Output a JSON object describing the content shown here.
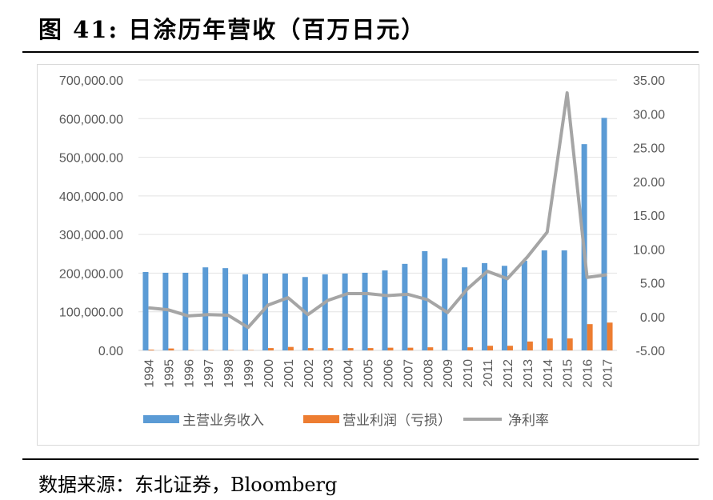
{
  "title": "图 41: 日涂历年营收（百万日元）",
  "source": "数据来源：东北证券，Bloomberg",
  "chart_data": {
    "type": "bar",
    "categories": [
      "1994",
      "1995",
      "1996",
      "1997",
      "1998",
      "1999",
      "2000",
      "2001",
      "2002",
      "2003",
      "2004",
      "2005",
      "2006",
      "2007",
      "2008",
      "2009",
      "2010",
      "2011",
      "2012",
      "2013",
      "2014",
      "2015",
      "2016",
      "2017"
    ],
    "series": [
      {
        "name": "主营业务收入",
        "axis": "left",
        "type": "bar",
        "color": "#5b9bd5",
        "values": [
          203000,
          201000,
          201000,
          215000,
          213000,
          197000,
          199000,
          199000,
          190000,
          197000,
          199000,
          201000,
          207000,
          224000,
          257000,
          238000,
          215000,
          226000,
          219000,
          232000,
          259000,
          259000,
          534000,
          602000
        ]
      },
      {
        "name": "营业利润（亏损）",
        "axis": "left",
        "type": "bar",
        "color": "#ed7d31",
        "values": [
          2000,
          5000,
          1000,
          1000,
          1000,
          1000,
          6000,
          9000,
          6000,
          6000,
          6000,
          6000,
          7000,
          7000,
          8000,
          0,
          8000,
          12000,
          12000,
          23000,
          31000,
          31000,
          68000,
          72000
        ]
      },
      {
        "name": "净利率",
        "axis": "right",
        "type": "line",
        "color": "#a5a5a5",
        "values": [
          1.3,
          1.0,
          0.1,
          0.3,
          0.2,
          -1.6,
          1.7,
          2.8,
          0.3,
          2.4,
          3.4,
          3.4,
          3.1,
          3.3,
          2.5,
          0.6,
          4.1,
          6.7,
          5.6,
          8.8,
          12.5,
          33.1,
          5.8,
          6.2
        ]
      }
    ],
    "ylim": [
      0,
      700000
    ],
    "yticks": [
      "0.00",
      "100,000.00",
      "200,000.00",
      "300,000.00",
      "400,000.00",
      "500,000.00",
      "600,000.00",
      "700,000.00"
    ],
    "y2lim": [
      -5,
      35
    ],
    "y2ticks": [
      "-5.00",
      "0.00",
      "5.00",
      "10.00",
      "15.00",
      "20.00",
      "25.00",
      "30.00",
      "35.00"
    ],
    "grid": true,
    "legend": "bottom"
  }
}
